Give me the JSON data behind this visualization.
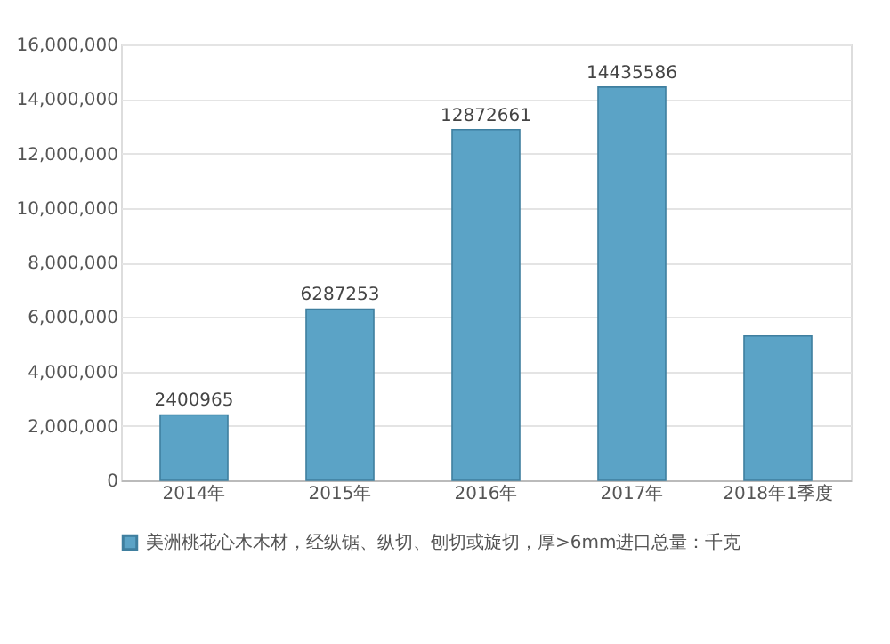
{
  "chart_data": {
    "type": "bar",
    "categories": [
      "2014年",
      "2015年",
      "2016年",
      "2017年",
      "2018年1季度"
    ],
    "series": [
      {
        "name": "美洲桃花心木木材，经纵锯、纵切、刨切或旋切，厚>6mm进口总量：千克",
        "color": "#5ba3c6",
        "values": [
          2400965,
          6287253,
          12872661,
          14435586,
          5300000
        ],
        "value_labels": [
          "2400965",
          "6287253",
          "12872661",
          "14435586",
          null
        ]
      }
    ],
    "ylim": [
      0,
      16000000
    ],
    "yticks": [
      {
        "value": 0,
        "label": "0"
      },
      {
        "value": 2000000,
        "label": "2,000,000"
      },
      {
        "value": 4000000,
        "label": "4,000,000"
      },
      {
        "value": 6000000,
        "label": "6,000,000"
      },
      {
        "value": 8000000,
        "label": "8,000,000"
      },
      {
        "value": 10000000,
        "label": "10,000,000"
      },
      {
        "value": 12000000,
        "label": "12,000,000"
      },
      {
        "value": 14000000,
        "label": "14,000,000"
      },
      {
        "value": 16000000,
        "label": "16,000,000"
      }
    ],
    "grid": "y",
    "legend": "bottom left"
  }
}
